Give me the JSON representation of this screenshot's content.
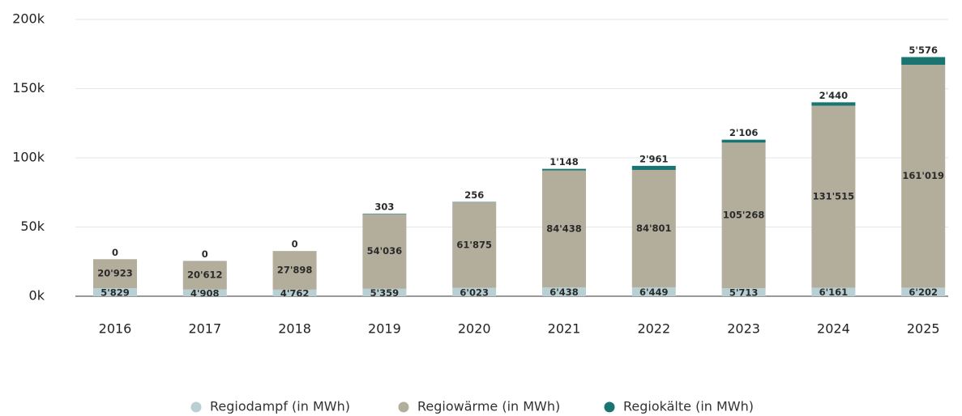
{
  "chart_data": {
    "type": "stacked_bar",
    "categories": [
      "2016",
      "2017",
      "2018",
      "2019",
      "2020",
      "2021",
      "2022",
      "2023",
      "2024",
      "2025"
    ],
    "series": [
      {
        "name": "Regiodampf (in MWh)",
        "color": "#b8d0d3",
        "values": [
          5829,
          4908,
          4762,
          5359,
          6023,
          6438,
          6449,
          5713,
          6161,
          6202
        ],
        "value_labels": [
          "5'829",
          "4'908",
          "4'762",
          "5'359",
          "6'023",
          "6'438",
          "6'449",
          "5'713",
          "6'161",
          "6'202"
        ]
      },
      {
        "name": "Regiowärme (in MWh)",
        "color": "#b3ad9c",
        "values": [
          20923,
          20612,
          27898,
          54036,
          61875,
          84438,
          84801,
          105268,
          131515,
          161019
        ],
        "value_labels": [
          "20'923",
          "20'612",
          "27'898",
          "54'036",
          "61'875",
          "84'438",
          "84'801",
          "105'268",
          "131'515",
          "161'019"
        ]
      },
      {
        "name": "Regiokälte (in MWh)",
        "color": "#1a7471",
        "values": [
          0,
          0,
          0,
          303,
          256,
          1148,
          2961,
          2106,
          2440,
          5576
        ],
        "value_labels": [
          "0",
          "0",
          "0",
          "303",
          "256",
          "1'148",
          "2'961",
          "2'106",
          "2'440",
          "5'576"
        ]
      }
    ],
    "ylim": [
      0,
      200000
    ],
    "yticks": [
      {
        "value": 0,
        "label": "0k"
      },
      {
        "value": 50000,
        "label": "50k"
      },
      {
        "value": 100000,
        "label": "100k"
      },
      {
        "value": 150000,
        "label": "150k"
      },
      {
        "value": 200000,
        "label": "200k"
      }
    ],
    "grid": true,
    "legend": "bottom"
  }
}
